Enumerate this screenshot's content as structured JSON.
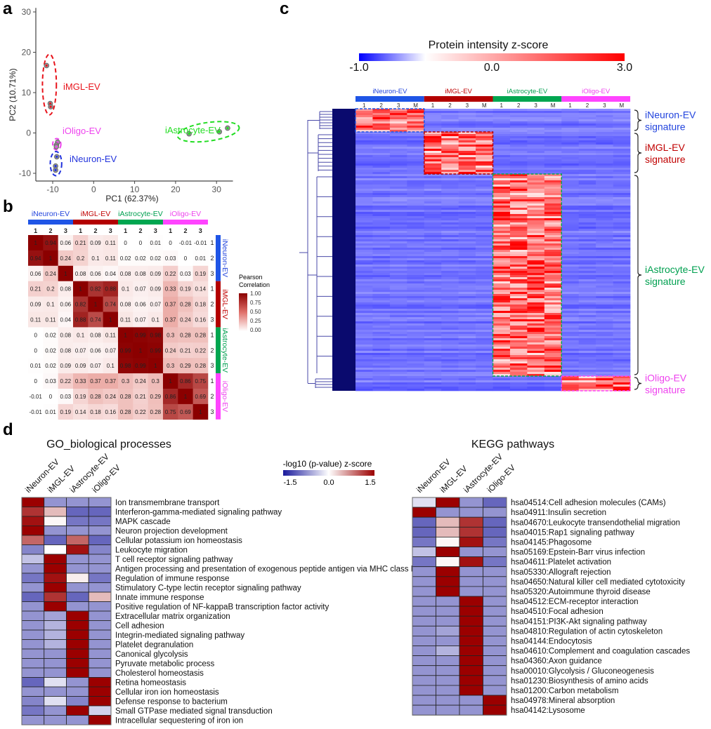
{
  "panel_labels": {
    "a": "a",
    "b": "b",
    "c": "c",
    "d": "d"
  },
  "groups": [
    {
      "name": "iNeuron-EV",
      "color": "#2244dd",
      "bar_color": "#1f55e6",
      "scatter_color": "#2233dd"
    },
    {
      "name": "iMGL-EV",
      "color": "#c00000",
      "bar_color": "#b30000",
      "scatter_color": "#e8141c"
    },
    {
      "name": "iAstrocyte-EV",
      "color": "#00a050",
      "bar_color": "#00a650",
      "scatter_color": "#22dd22"
    },
    {
      "name": "iOligo-EV",
      "color": "#ee44ee",
      "bar_color": "#ff44ff",
      "scatter_color": "#ee44ee"
    }
  ],
  "chart_data": [
    {
      "panel": "a",
      "type": "scatter",
      "xlabel": "PC1 (62.37%)",
      "ylabel": "PC2 (10.71%)",
      "xticks": [
        -10,
        0,
        10,
        20,
        30
      ],
      "yticks": [
        -10,
        0,
        10,
        20,
        30
      ],
      "xlim": [
        -14,
        34
      ],
      "ylim": [
        -12,
        31
      ],
      "grid": false,
      "series": [
        {
          "name": "iMGL-EV",
          "points": [
            [
              -11.5,
              16.7
            ],
            [
              -10.6,
              7.3
            ],
            [
              -10.5,
              6.5
            ]
          ]
        },
        {
          "name": "iOligo-EV",
          "points": [
            [
              -8.8,
              -2.3
            ],
            [
              -9.1,
              -3.0
            ],
            [
              -9.1,
              -3.4
            ]
          ]
        },
        {
          "name": "iNeuron-EV",
          "points": [
            [
              -9.0,
              -5.9
            ],
            [
              -9.3,
              -8.2
            ],
            [
              -9.3,
              -9.2
            ]
          ]
        },
        {
          "name": "iAstrocyte-EV",
          "points": [
            [
              23.3,
              -0.2
            ],
            [
              30.7,
              0.3
            ],
            [
              32.7,
              1.2
            ]
          ]
        }
      ]
    },
    {
      "panel": "b",
      "type": "heatmap",
      "legend_title": [
        "Pearson",
        "Correlation"
      ],
      "legend_ticks": [
        "1.00",
        "0.75",
        "0.50",
        "0.25",
        "0.00"
      ],
      "colorscale": [
        "#ffffff",
        "#8b0000"
      ],
      "replicates": [
        "1",
        "2",
        "3"
      ],
      "matrix": [
        [
          1,
          0.94,
          0.06,
          0.21,
          0.09,
          0.11,
          0,
          0,
          0.01,
          0,
          -0.01,
          -0.01
        ],
        [
          0.94,
          1,
          0.24,
          0.2,
          0.1,
          0.11,
          0.02,
          0.02,
          0.02,
          0.03,
          0,
          0.01
        ],
        [
          0.06,
          0.24,
          1,
          0.08,
          0.06,
          0.04,
          0.08,
          0.08,
          0.09,
          0.22,
          0.03,
          0.19
        ],
        [
          0.21,
          0.2,
          0.08,
          1,
          0.82,
          0.88,
          0.1,
          0.07,
          0.09,
          0.33,
          0.19,
          0.14
        ],
        [
          0.09,
          0.1,
          0.06,
          0.82,
          1,
          0.74,
          0.08,
          0.06,
          0.07,
          0.37,
          0.28,
          0.18
        ],
        [
          0.11,
          0.11,
          0.04,
          0.88,
          0.74,
          1,
          0.11,
          0.07,
          0.1,
          0.37,
          0.24,
          0.16
        ],
        [
          0,
          0.02,
          0.08,
          0.1,
          0.08,
          0.11,
          1,
          0.99,
          0.98,
          0.3,
          0.28,
          0.28
        ],
        [
          0,
          0.02,
          0.08,
          0.07,
          0.06,
          0.07,
          0.99,
          1,
          0.99,
          0.24,
          0.21,
          0.22
        ],
        [
          0.01,
          0.02,
          0.09,
          0.09,
          0.07,
          0.1,
          0.98,
          0.99,
          1,
          0.3,
          0.29,
          0.28
        ],
        [
          0,
          0.03,
          0.22,
          0.33,
          0.37,
          0.37,
          0.3,
          0.24,
          0.3,
          1,
          0.86,
          0.75
        ],
        [
          -0.01,
          0,
          0.03,
          0.19,
          0.28,
          0.24,
          0.28,
          0.21,
          0.29,
          0.86,
          1,
          0.69
        ],
        [
          -0.01,
          0.01,
          0.19,
          0.14,
          0.18,
          0.16,
          0.28,
          0.22,
          0.28,
          0.75,
          0.69,
          1
        ]
      ]
    },
    {
      "panel": "c",
      "type": "heatmap",
      "colorbar_title": "Protein intensity z-score",
      "colorbar_ticks": [
        "-1.0",
        "0.0",
        "3.0"
      ],
      "colorscale": [
        "#0000ff",
        "#ffffff",
        "#ff0000"
      ],
      "column_labels": [
        "1",
        "2",
        "3",
        "M"
      ],
      "signatures": [
        {
          "group": "iNeuron-EV",
          "label": [
            "iNeuron-EV",
            "signature"
          ]
        },
        {
          "group": "iMGL-EV",
          "label": [
            "iMGL-EV",
            "signature"
          ]
        },
        {
          "group": "iAstrocyte-EV",
          "label": [
            "iAstrocyte-EV",
            "signature"
          ]
        },
        {
          "group": "iOligo-EV",
          "label": [
            "iOligo-EV",
            "signature"
          ]
        }
      ]
    },
    {
      "panel": "d-go",
      "type": "heatmap",
      "title": "GO_biological processes",
      "columns": [
        "iNeuron-EV",
        "iMGL-EV",
        "iAstrocyte-EV",
        "iOligo-EV"
      ],
      "rows": [
        {
          "label": "Ion transmembrane transport",
          "values": [
            1.5,
            -0.7,
            -0.7,
            -0.7
          ]
        },
        {
          "label": "Interferon-gamma-mediated signaling pathway",
          "values": [
            1.2,
            0.4,
            -1.0,
            -1.0
          ]
        },
        {
          "label": "MAPK cascade",
          "values": [
            1.4,
            0.05,
            -0.9,
            -0.9
          ]
        },
        {
          "label": "Neuron projection development",
          "values": [
            1.5,
            -0.7,
            -0.7,
            -0.7
          ]
        },
        {
          "label": "Cellular potassium ion homeostasis",
          "values": [
            0.9,
            -1.0,
            0.9,
            -1.0
          ]
        },
        {
          "label": "Leukocyte migration",
          "values": [
            -0.8,
            0.0,
            1.4,
            -0.8
          ]
        },
        {
          "label": "T cell receptor signaling pathway",
          "values": [
            -0.4,
            1.5,
            -0.7,
            -0.7
          ]
        },
        {
          "label": "Antigen processing and presentation of exogenous peptide antigen via MHC class II",
          "values": [
            -0.7,
            1.5,
            -0.7,
            -0.7
          ]
        },
        {
          "label": "Regulation of immune response",
          "values": [
            -0.9,
            1.4,
            0.1,
            -0.9
          ]
        },
        {
          "label": "Stimulatory C-type lectin receptor signaling pathway",
          "values": [
            -0.7,
            1.5,
            -0.7,
            -0.7
          ]
        },
        {
          "label": "Innate immune response",
          "values": [
            -1.0,
            1.2,
            -1.0,
            0.4
          ]
        },
        {
          "label": "Positive regulation of NF-kappaB transcription factor activity",
          "values": [
            -0.7,
            1.5,
            -0.7,
            -0.7
          ]
        },
        {
          "label": "Extracellular matrix organization",
          "values": [
            -0.7,
            -0.6,
            1.5,
            -0.7
          ]
        },
        {
          "label": "Cell adhesion",
          "values": [
            -0.7,
            -0.5,
            1.5,
            -0.7
          ]
        },
        {
          "label": "Integrin-mediated signaling pathway",
          "values": [
            -0.7,
            -0.5,
            1.5,
            -0.7
          ]
        },
        {
          "label": "Platelet degranulation",
          "values": [
            -0.7,
            -0.5,
            1.5,
            -0.7
          ]
        },
        {
          "label": "Canonical glycolysis",
          "values": [
            -0.7,
            -0.7,
            1.5,
            -0.7
          ]
        },
        {
          "label": "Pyruvate metabolic process",
          "values": [
            -0.7,
            -0.7,
            1.5,
            -0.7
          ]
        },
        {
          "label": "Cholesterol homeostasis",
          "values": [
            -0.7,
            -0.7,
            1.5,
            -0.7
          ]
        },
        {
          "label": "Retina homeostasis",
          "values": [
            -1.0,
            -0.2,
            -0.7,
            1.5
          ]
        },
        {
          "label": "Cellular iron ion homeostasis",
          "values": [
            -0.7,
            -0.7,
            -0.7,
            1.5
          ]
        },
        {
          "label": "Defense response to bacterium",
          "values": [
            -0.8,
            -0.2,
            -0.8,
            1.5
          ]
        },
        {
          "label": "Small GTPase mediated signal transduction",
          "values": [
            -0.9,
            -0.7,
            1.5,
            -0.3
          ]
        },
        {
          "label": "Intracellular sequestering of iron ion",
          "values": [
            -0.7,
            -0.7,
            -0.7,
            1.5
          ]
        }
      ]
    },
    {
      "panel": "d-kegg",
      "type": "heatmap",
      "title": "KEGG pathways",
      "columns": [
        "iNeuron-EV",
        "iMGL-EV",
        "iAstrocyte-EV",
        "iOligo-EV"
      ],
      "rows": [
        {
          "label": "hsa04514:Cell adhesion molecules (CAMs)",
          "values": [
            -0.2,
            1.5,
            -0.7,
            -1.0
          ]
        },
        {
          "label": "hsa04911:Insulin secretion",
          "values": [
            1.5,
            -0.7,
            -0.7,
            -0.7
          ]
        },
        {
          "label": "hsa04670:Leukocyte transendothelial migration",
          "values": [
            -1.0,
            0.4,
            1.2,
            -1.0
          ]
        },
        {
          "label": "hsa04015:Rap1 signaling pathway",
          "values": [
            -1.0,
            0.4,
            1.2,
            -1.0
          ]
        },
        {
          "label": "hsa04145:Phagosome",
          "values": [
            -0.9,
            0.05,
            1.4,
            -0.9
          ]
        },
        {
          "label": "hsa05169:Epstein-Barr virus infection",
          "values": [
            -0.4,
            1.5,
            -0.7,
            -0.7
          ]
        },
        {
          "label": "hsa04611:Platelet activation",
          "values": [
            -0.9,
            0.05,
            1.4,
            -0.9
          ]
        },
        {
          "label": "hsa05330:Allograft rejection",
          "values": [
            -0.7,
            1.5,
            -0.7,
            -0.7
          ]
        },
        {
          "label": "hsa04650:Natural killer cell mediated cytotoxicity",
          "values": [
            -0.7,
            1.5,
            -0.7,
            -0.7
          ]
        },
        {
          "label": "hsa05320:Autoimmune thyroid disease",
          "values": [
            -0.7,
            1.5,
            -0.7,
            -0.7
          ]
        },
        {
          "label": "hsa04512:ECM-receptor interaction",
          "values": [
            -0.7,
            -0.7,
            1.5,
            -0.7
          ]
        },
        {
          "label": "hsa04510:Focal adhesion",
          "values": [
            -0.7,
            -0.7,
            1.5,
            -0.7
          ]
        },
        {
          "label": "hsa04151:PI3K-Akt signaling pathway",
          "values": [
            -0.7,
            -0.7,
            1.5,
            -0.7
          ]
        },
        {
          "label": "hsa04810:Regulation of actin cytoskeleton",
          "values": [
            -0.7,
            -0.6,
            1.5,
            -0.7
          ]
        },
        {
          "label": "hsa04144:Endocytosis",
          "values": [
            -0.7,
            -0.7,
            1.5,
            -0.7
          ]
        },
        {
          "label": "hsa04610:Complement and coagulation cascades",
          "values": [
            -0.7,
            -0.5,
            1.5,
            -0.7
          ]
        },
        {
          "label": "hsa04360:Axon guidance",
          "values": [
            -0.7,
            -0.7,
            1.5,
            -0.7
          ]
        },
        {
          "label": "hsa00010:Glycolysis / Gluconeogenesis",
          "values": [
            -0.7,
            -0.7,
            1.5,
            -0.7
          ]
        },
        {
          "label": "hsa01230:Biosynthesis of amino acids",
          "values": [
            -0.7,
            -0.7,
            1.5,
            -0.7
          ]
        },
        {
          "label": "hsa01200:Carbon metabolism",
          "values": [
            -0.7,
            -0.7,
            1.5,
            -0.7
          ]
        },
        {
          "label": "hsa04978:Mineral absorption",
          "values": [
            -0.7,
            -0.7,
            -0.7,
            1.5
          ]
        },
        {
          "label": "hsa04142:Lysosome",
          "values": [
            -0.7,
            -0.7,
            -0.7,
            1.5
          ]
        }
      ]
    }
  ],
  "d_legend": {
    "title": "-log10 (p-value) z-score",
    "ticks": [
      "-1.5",
      "0.0",
      "1.5"
    ],
    "colorscale": [
      "#1a1a9c",
      "#ffffff",
      "#9b0000"
    ]
  }
}
